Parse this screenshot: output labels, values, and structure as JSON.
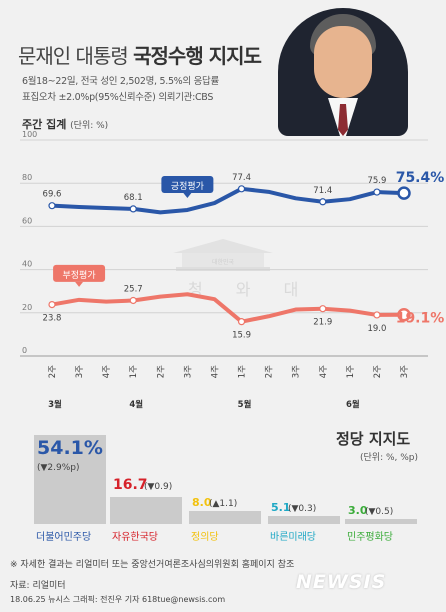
{
  "header": {
    "title_plain": "문재인 대통령",
    "title_bold": "국정수행 지지도",
    "note_line1": "6월18~22일, 전국 성인 2,502명, 5.5%의 응답률",
    "note_line2": "표집오차 ±2.0%p(95%신뢰수준) 의뢰기관:CBS"
  },
  "weekly": {
    "section_title": "주간 집계",
    "section_unit": "(단위: %)",
    "watermark_emblem": "대한민국",
    "watermark": "청 와 대"
  },
  "party": {
    "section_title": "정당 지지도",
    "section_unit": "(단위: %, %p)"
  },
  "footer": {
    "note": "※ 자세한 결과는 리얼미터 또는 중앙선거여론조사심의위원회 홈페이지 참조",
    "source": "자료: 리얼미터",
    "credit": "18.06.25 뉴시스 그래픽: 전진우 기자  618tue@newsis.com",
    "brand": "NEWSIS"
  },
  "chart_data": [
    {
      "type": "line",
      "x": [
        "2주",
        "3주",
        "4주",
        "1주",
        "2주",
        "3주",
        "4주",
        "1주",
        "2주",
        "3주",
        "4주",
        "1주",
        "2주",
        "3주"
      ],
      "x_groups": [
        {
          "label": "3월",
          "index": 0
        },
        {
          "label": "4월",
          "index": 3
        },
        {
          "label": "5월",
          "index": 7
        },
        {
          "label": "6월",
          "index": 11
        }
      ],
      "ylim": [
        0,
        100
      ],
      "yticks": [
        0,
        20,
        40,
        60,
        80,
        100
      ],
      "grid": true,
      "series": [
        {
          "name": "긍정평가",
          "color": "#2a57a8",
          "values": [
            69.6,
            69.0,
            68.5,
            68.1,
            66.5,
            67.6,
            70.8,
            77.4,
            76.0,
            73.0,
            71.4,
            72.6,
            75.9,
            75.4
          ],
          "labels": [
            {
              "index": 0,
              "text": "69.6"
            },
            {
              "index": 3,
              "text": "68.1"
            },
            {
              "index": 7,
              "text": "77.4"
            },
            {
              "index": 10,
              "text": "71.4"
            },
            {
              "index": 12,
              "text": "75.9"
            },
            {
              "index": 13,
              "text": "75.4%",
              "emphasis": true
            }
          ]
        },
        {
          "name": "부정평가",
          "color": "#ee7669",
          "values": [
            23.8,
            26.0,
            25.2,
            25.7,
            27.5,
            28.6,
            26.3,
            15.9,
            18.4,
            21.5,
            21.9,
            21.0,
            19.0,
            19.1
          ],
          "labels": [
            {
              "index": 0,
              "text": "23.8"
            },
            {
              "index": 3,
              "text": "25.7"
            },
            {
              "index": 7,
              "text": "15.9"
            },
            {
              "index": 10,
              "text": "21.9"
            },
            {
              "index": 12,
              "text": "19.0"
            },
            {
              "index": 13,
              "text": "19.1%",
              "emphasis": true
            }
          ]
        }
      ]
    },
    {
      "type": "bar",
      "categories": [
        "더불어민주당",
        "자유한국당",
        "정의당",
        "바른미래당",
        "민주평화당"
      ],
      "values": [
        54.1,
        16.7,
        8.0,
        5.1,
        3.0
      ],
      "value_labels": [
        "54.1%",
        "16.7",
        "8.0",
        "5.1",
        "3.0"
      ],
      "changes": [
        "(▼2.9%p)",
        "(▼0.9)",
        "(▲1.1)",
        "(▼0.3)",
        "(▼0.5)"
      ],
      "colors": [
        "#2a57a8",
        "#d6222a",
        "#f2c20f",
        "#1fa8c5",
        "#3bac3a"
      ]
    }
  ]
}
